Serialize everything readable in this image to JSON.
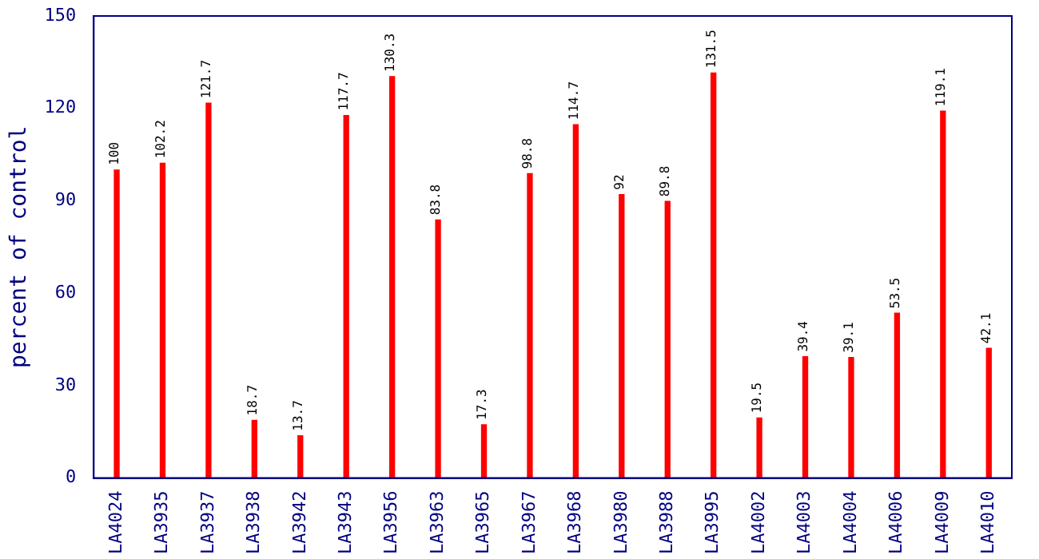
{
  "chart_data": {
    "type": "bar",
    "ylabel": "percent of control",
    "categories": [
      "LA4024",
      "LA3935",
      "LA3937",
      "LA3938",
      "LA3942",
      "LA3943",
      "LA3956",
      "LA3963",
      "LA3965",
      "LA3967",
      "LA3968",
      "LA3980",
      "LA3988",
      "LA3995",
      "LA4002",
      "LA4003",
      "LA4004",
      "LA4006",
      "LA4009",
      "LA4010"
    ],
    "values": [
      100,
      102.2,
      121.7,
      18.7,
      13.7,
      117.7,
      130.3,
      83.8,
      17.3,
      98.8,
      114.7,
      92,
      89.8,
      131.5,
      19.5,
      39.4,
      39.1,
      53.5,
      119.1,
      42.1
    ],
    "color": "#ff0000",
    "ylim": [
      0,
      150
    ],
    "yticks": [
      0,
      30,
      60,
      90,
      120,
      150
    ],
    "grid": false,
    "legend": false,
    "data_labels": true
  }
}
